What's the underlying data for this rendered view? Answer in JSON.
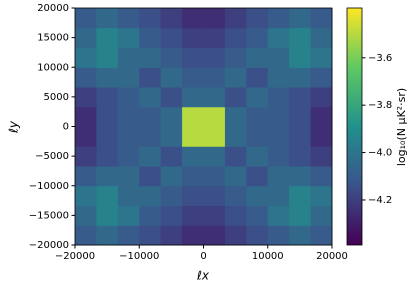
{
  "chart_data": {
    "type": "heatmap",
    "colormap": "viridis",
    "xlabel": "ℓx",
    "ylabel": "ℓy",
    "colorbar_label": "log₁₀(N μK²·sr)",
    "x": [
      -18333,
      -15000,
      -11667,
      -8333,
      -5000,
      -1667,
      1667,
      5000,
      8333,
      11667,
      15000,
      18333
    ],
    "y": [
      -18333,
      -15000,
      -11667,
      -8333,
      -5000,
      -1667,
      1667,
      5000,
      8333,
      11667,
      15000,
      18333
    ],
    "z": [
      [
        -4.1,
        -4.05,
        -4.1,
        -4.15,
        -4.2,
        -4.25,
        -4.25,
        -4.2,
        -4.15,
        -4.1,
        -4.05,
        -4.1
      ],
      [
        -4.05,
        -3.95,
        -4.0,
        -4.1,
        -4.15,
        -4.2,
        -4.2,
        -4.15,
        -4.1,
        -4.0,
        -3.95,
        -4.05
      ],
      [
        -4.0,
        -3.95,
        -4.05,
        -4.05,
        -4.1,
        -4.15,
        -4.15,
        -4.1,
        -4.05,
        -4.05,
        -3.95,
        -4.0
      ],
      [
        -4.1,
        -4.05,
        -4.05,
        -4.15,
        -4.05,
        -4.1,
        -4.1,
        -4.05,
        -4.15,
        -4.05,
        -4.05,
        -4.1
      ],
      [
        -4.2,
        -4.15,
        -4.1,
        -4.05,
        -4.15,
        -4.05,
        -4.05,
        -4.15,
        -4.05,
        -4.1,
        -4.15,
        -4.2
      ],
      [
        -4.25,
        -4.15,
        -4.1,
        -4.1,
        -4.05,
        -3.5,
        -3.5,
        -4.05,
        -4.1,
        -4.1,
        -4.15,
        -4.25
      ],
      [
        -4.25,
        -4.15,
        -4.1,
        -4.1,
        -4.05,
        -3.5,
        -3.5,
        -4.05,
        -4.1,
        -4.1,
        -4.15,
        -4.25
      ],
      [
        -4.2,
        -4.15,
        -4.1,
        -4.05,
        -4.15,
        -4.05,
        -4.05,
        -4.15,
        -4.05,
        -4.1,
        -4.15,
        -4.2
      ],
      [
        -4.1,
        -4.05,
        -4.05,
        -4.15,
        -4.05,
        -4.1,
        -4.1,
        -4.05,
        -4.15,
        -4.05,
        -4.05,
        -4.1
      ],
      [
        -4.0,
        -3.95,
        -4.05,
        -4.05,
        -4.1,
        -4.15,
        -4.15,
        -4.1,
        -4.05,
        -4.05,
        -3.95,
        -4.0
      ],
      [
        -4.05,
        -3.95,
        -4.0,
        -4.1,
        -4.15,
        -4.2,
        -4.2,
        -4.15,
        -4.1,
        -4.0,
        -3.95,
        -4.05
      ],
      [
        -4.1,
        -4.05,
        -4.1,
        -4.15,
        -4.2,
        -4.25,
        -4.25,
        -4.2,
        -4.15,
        -4.1,
        -4.05,
        -4.1
      ]
    ],
    "xlim": [
      -20000,
      20000
    ],
    "ylim": [
      -20000,
      20000
    ],
    "xticks": [
      {
        "value": -20000,
        "label": "−20000"
      },
      {
        "value": -10000,
        "label": "−10000"
      },
      0,
      10000,
      20000
    ],
    "yticks": [
      {
        "value": -20000,
        "label": "−20000"
      },
      {
        "value": -15000,
        "label": "−15000"
      },
      {
        "value": -10000,
        "label": "−10000"
      },
      {
        "value": -5000,
        "label": "−5000"
      },
      0,
      5000,
      10000,
      15000,
      20000
    ],
    "clim": [
      -4.39,
      -3.39
    ],
    "cticks": [
      {
        "value": -3.6,
        "label": "−3.6"
      },
      {
        "value": -3.8,
        "label": "−3.8"
      },
      {
        "value": -4,
        "label": "−4.0"
      },
      {
        "value": -4.2,
        "label": "−4.2"
      }
    ]
  }
}
